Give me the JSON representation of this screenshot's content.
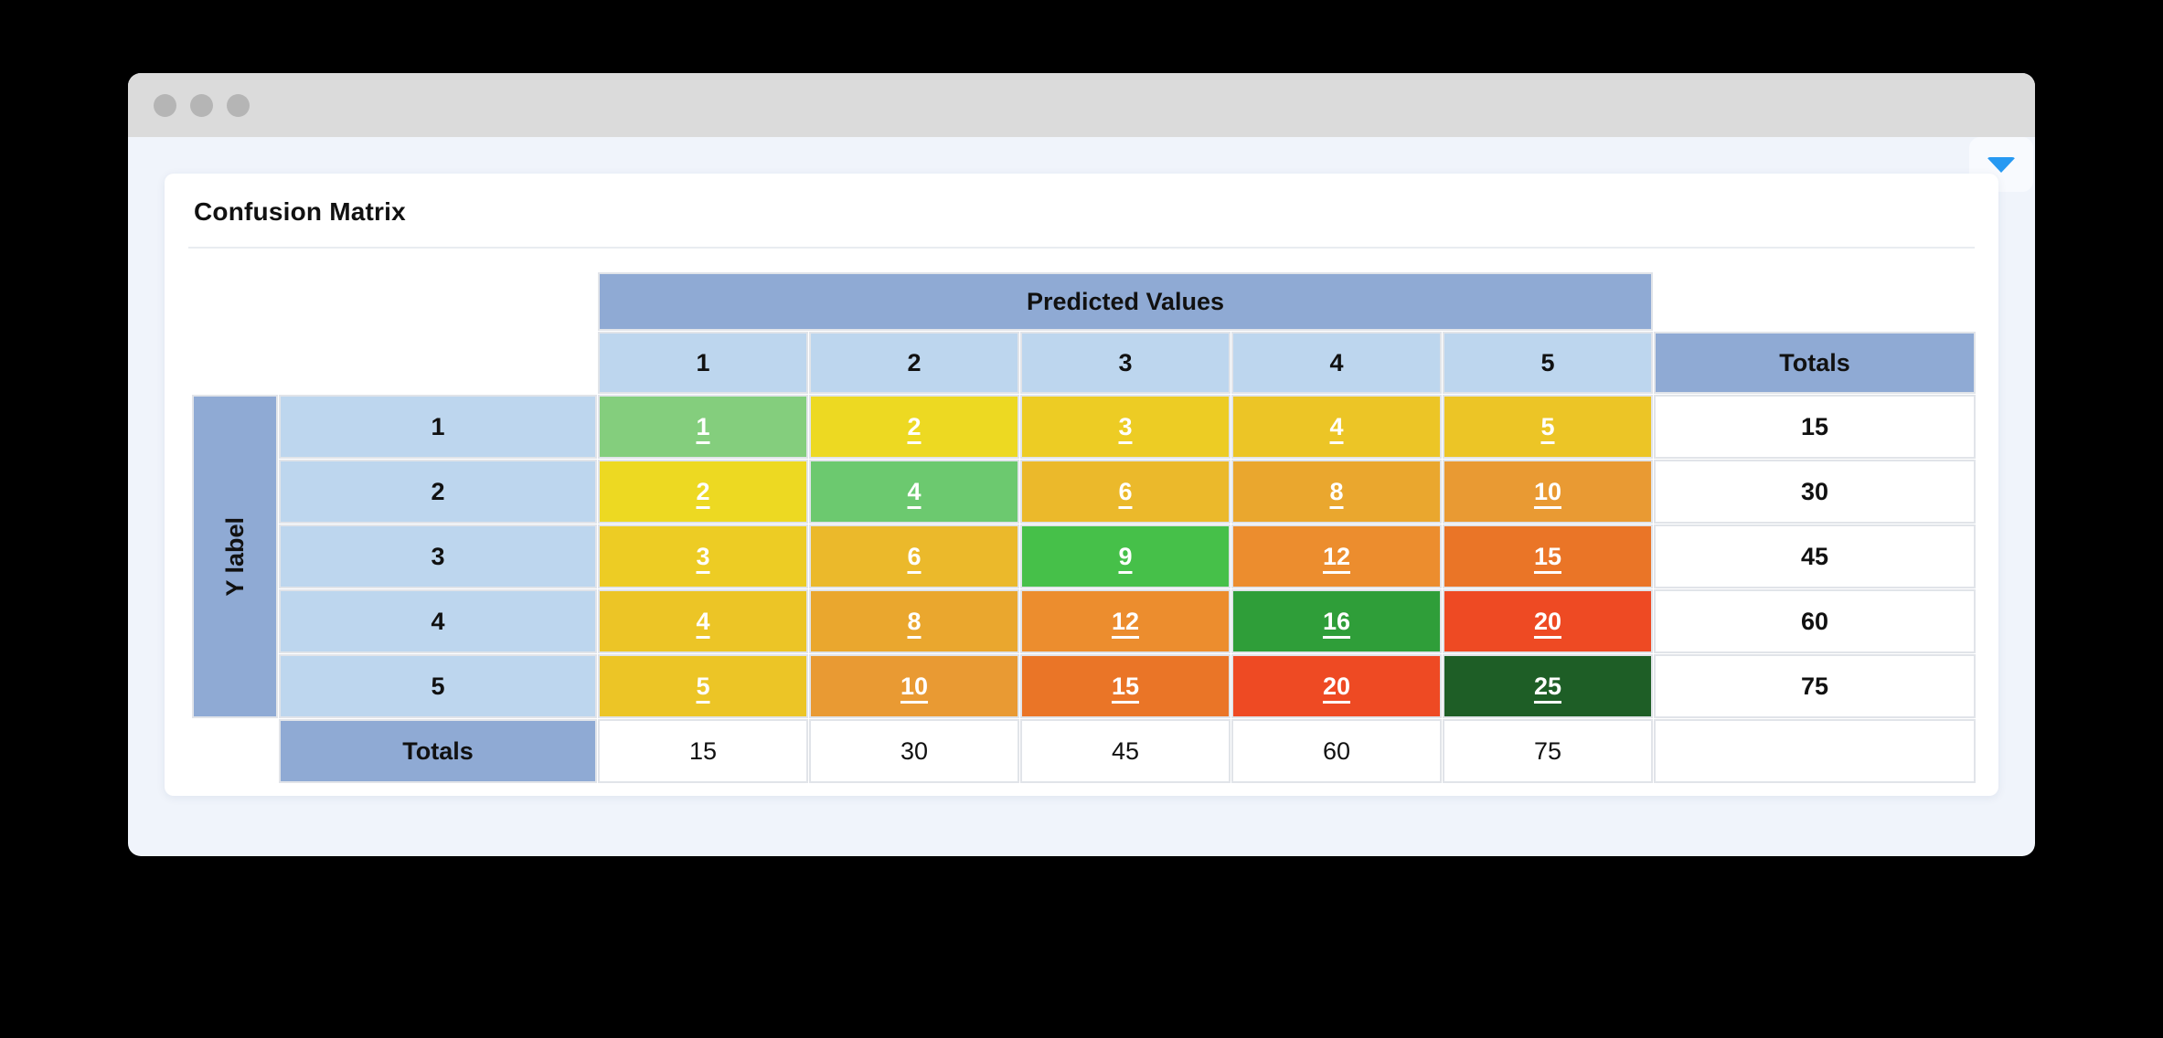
{
  "window": {
    "titlebar_color": "#dbdbdb",
    "dot_color": "#b5b5b5",
    "page_background": "#f0f4fb",
    "caret_color": "#2799f2"
  },
  "card": {
    "title": "Confusion Matrix"
  },
  "matrix": {
    "predicted_label": "Predicted Values",
    "y_label": "Y label",
    "totals_label": "Totals",
    "col_headers": [
      "1",
      "2",
      "3",
      "4",
      "5"
    ],
    "row_headers": [
      "1",
      "2",
      "3",
      "4",
      "5"
    ],
    "cells": [
      [
        {
          "v": "1",
          "color": "#84ce7d"
        },
        {
          "v": "2",
          "color": "#edd922"
        },
        {
          "v": "3",
          "color": "#edcc24"
        },
        {
          "v": "4",
          "color": "#ecc526"
        },
        {
          "v": "5",
          "color": "#ecc526"
        }
      ],
      [
        {
          "v": "2",
          "color": "#edd922"
        },
        {
          "v": "4",
          "color": "#6cc96f"
        },
        {
          "v": "6",
          "color": "#ebb92b"
        },
        {
          "v": "8",
          "color": "#eaa72e"
        },
        {
          "v": "10",
          "color": "#e99a33"
        }
      ],
      [
        {
          "v": "3",
          "color": "#edcc24"
        },
        {
          "v": "6",
          "color": "#ebb92b"
        },
        {
          "v": "9",
          "color": "#46c049"
        },
        {
          "v": "12",
          "color": "#ec8d2e"
        },
        {
          "v": "15",
          "color": "#ea7527"
        }
      ],
      [
        {
          "v": "4",
          "color": "#ecc526"
        },
        {
          "v": "8",
          "color": "#eaa72e"
        },
        {
          "v": "12",
          "color": "#ec8d2e"
        },
        {
          "v": "16",
          "color": "#2f9e39"
        },
        {
          "v": "20",
          "color": "#ee4a23"
        }
      ],
      [
        {
          "v": "5",
          "color": "#ecc526"
        },
        {
          "v": "10",
          "color": "#e99a33"
        },
        {
          "v": "15",
          "color": "#ea7527"
        },
        {
          "v": "20",
          "color": "#ee4a23"
        },
        {
          "v": "25",
          "color": "#1e5e26"
        }
      ]
    ],
    "row_totals": [
      "15",
      "30",
      "45",
      "60",
      "75"
    ],
    "col_totals": [
      "15",
      "30",
      "45",
      "60",
      "75"
    ],
    "header_blue": "#8faad4",
    "label_blue": "#bdd6ee",
    "grid_line": "#e1e4e9"
  },
  "chart_data": {
    "type": "heatmap",
    "title": "Confusion Matrix",
    "xlabel": "Predicted Values",
    "ylabel": "Y label",
    "x_categories": [
      1,
      2,
      3,
      4,
      5
    ],
    "y_categories": [
      1,
      2,
      3,
      4,
      5
    ],
    "values": [
      [
        1,
        2,
        3,
        4,
        5
      ],
      [
        2,
        4,
        6,
        8,
        10
      ],
      [
        3,
        6,
        9,
        12,
        15
      ],
      [
        4,
        8,
        12,
        16,
        20
      ],
      [
        5,
        10,
        15,
        20,
        25
      ]
    ],
    "row_totals": [
      15,
      30,
      45,
      60,
      75
    ],
    "col_totals": [
      15,
      30,
      45,
      60,
      75
    ],
    "legend_position": "none",
    "grid": true
  }
}
